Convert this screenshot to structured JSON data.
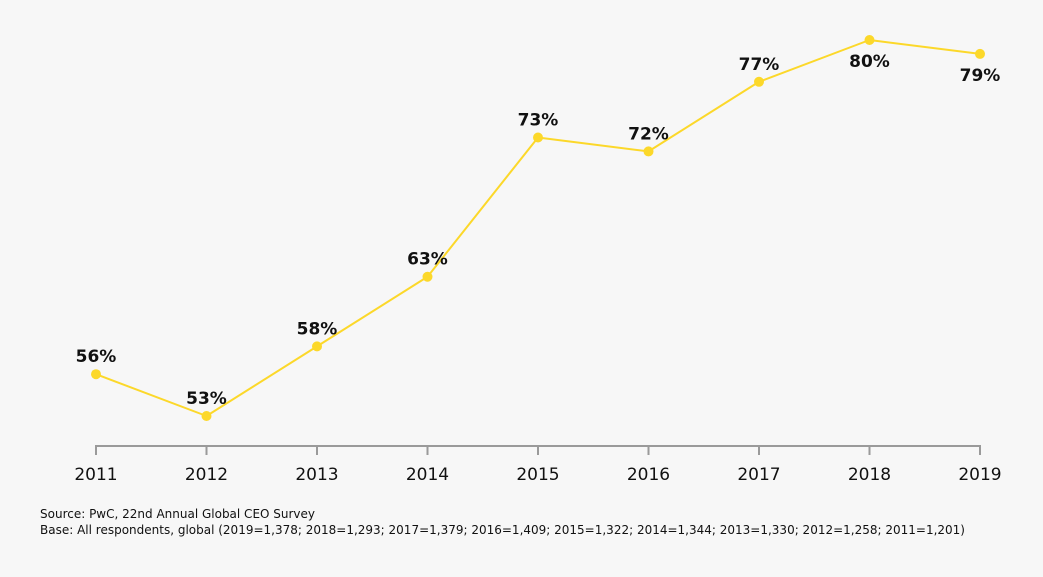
{
  "chart_data": {
    "type": "line",
    "title": "",
    "xlabel": "",
    "ylabel": "",
    "x": [
      "2011",
      "2012",
      "2013",
      "2014",
      "2015",
      "2016",
      "2017",
      "2018",
      "2019"
    ],
    "series": [
      {
        "values": [
          56,
          53,
          58,
          63,
          73,
          72,
          77,
          80,
          79
        ],
        "labels": [
          "56%",
          "53%",
          "58%",
          "63%",
          "73%",
          "72%",
          "77%",
          "80%",
          "79%"
        ],
        "color": "#fcd82a"
      }
    ],
    "ylim": [
      50,
      82
    ],
    "grid": false,
    "legend": "none",
    "axis_color": "#9a9a9a"
  },
  "footnotes": {
    "source": "Source: PwC, 22nd Annual Global CEO Survey",
    "base": "Base: All respondents, global (2019=1,378; 2018=1,293; 2017=1,379; 2016=1,409; 2015=1,322; 2014=1,344; 2013=1,330; 2012=1,258; 2011=1,201)"
  }
}
